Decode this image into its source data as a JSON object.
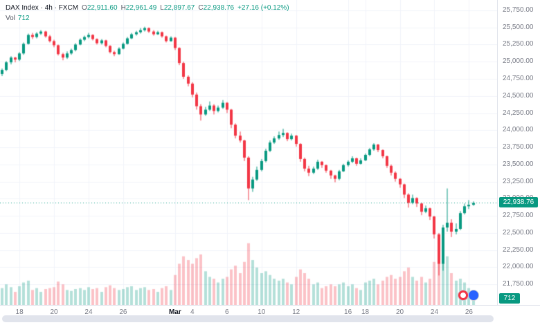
{
  "header": {
    "title": "DAX Index · 4h · FXCM",
    "ohlc": {
      "o_label": "O",
      "o_value": "22,911.60",
      "h_label": "H",
      "h_value": "22,961.49",
      "l_label": "L",
      "l_value": "22,897.67",
      "c_label": "C",
      "c_value": "22,938.76",
      "change": "+27.16 (+0.12%)"
    },
    "volume_row": {
      "label": "Vol",
      "value": "712"
    }
  },
  "colors": {
    "up": "#089981",
    "down": "#f23645",
    "vol_up": "rgba(8,153,129,0.30)",
    "vol_down": "rgba(242,54,69,0.30)",
    "grid": "#f0f3fa",
    "axis_text": "#787b86",
    "badge_bg": "#089981",
    "axis_border": "#e0e3eb"
  },
  "price_axis": {
    "tick_min": 21750,
    "tick_max": 25750,
    "tick_step": 250,
    "last_price_label": "22,938.76",
    "last_volume_label": "712"
  },
  "stickers": [
    {
      "name": "red-circle-sticker",
      "ring": "#f23645",
      "fill": "#ffffff"
    },
    {
      "name": "blue-circle-sticker",
      "ring": "#2962ff",
      "fill": "#2962ff"
    }
  ],
  "chart_data": {
    "type": "candlestick",
    "title": "DAX Index 4h FXCM",
    "ylim": [
      21450,
      25900
    ],
    "right_offset": 5,
    "volume_pane_height": 92,
    "candle_format": [
      "open",
      "high",
      "low",
      "close",
      "volume"
    ],
    "time_labels": [
      {
        "index": 4,
        "text": "18"
      },
      {
        "index": 12,
        "text": "20"
      },
      {
        "index": 20,
        "text": "24"
      },
      {
        "index": 28,
        "text": "26"
      },
      {
        "index": 40,
        "text": "Mar",
        "major": true
      },
      {
        "index": 44,
        "text": "4"
      },
      {
        "index": 52,
        "text": "6"
      },
      {
        "index": 60,
        "text": "10"
      },
      {
        "index": 68,
        "text": "12"
      },
      {
        "index": 80,
        "text": "16"
      },
      {
        "index": 84,
        "text": "18"
      },
      {
        "index": 92,
        "text": "20"
      },
      {
        "index": 100,
        "text": "24"
      },
      {
        "index": 108,
        "text": "26"
      }
    ],
    "candles": [
      [
        24820,
        24900,
        24790,
        24880,
        900
      ],
      [
        24880,
        25010,
        24860,
        24990,
        1100
      ],
      [
        24990,
        25080,
        24960,
        25060,
        950
      ],
      [
        25060,
        25070,
        24990,
        25030,
        700
      ],
      [
        25030,
        25140,
        25010,
        25120,
        1000
      ],
      [
        25120,
        25280,
        25100,
        25260,
        1200
      ],
      [
        25260,
        25410,
        25250,
        25390,
        1300
      ],
      [
        25390,
        25420,
        25330,
        25360,
        800
      ],
      [
        25360,
        25430,
        25340,
        25410,
        900
      ],
      [
        25410,
        25460,
        25390,
        25440,
        700
      ],
      [
        25440,
        25450,
        25350,
        25370,
        850
      ],
      [
        25370,
        25390,
        25280,
        25300,
        900
      ],
      [
        25300,
        25320,
        25210,
        25240,
        950
      ],
      [
        25240,
        25250,
        25090,
        25110,
        1250
      ],
      [
        25110,
        25130,
        25020,
        25060,
        1100
      ],
      [
        25060,
        25150,
        25040,
        25120,
        800
      ],
      [
        25120,
        25190,
        25100,
        25170,
        750
      ],
      [
        25170,
        25270,
        25150,
        25250,
        850
      ],
      [
        25250,
        25340,
        25240,
        25320,
        900
      ],
      [
        25320,
        25380,
        25300,
        25360,
        800
      ],
      [
        25360,
        25420,
        25340,
        25390,
        950
      ],
      [
        25390,
        25400,
        25310,
        25330,
        850
      ],
      [
        25330,
        25340,
        25250,
        25270,
        900
      ],
      [
        25270,
        25330,
        25250,
        25310,
        700
      ],
      [
        25310,
        25320,
        25210,
        25230,
        950
      ],
      [
        25230,
        25240,
        25120,
        25140,
        1050
      ],
      [
        25140,
        25160,
        25080,
        25110,
        900
      ],
      [
        25110,
        25210,
        25100,
        25190,
        800
      ],
      [
        25190,
        25280,
        25180,
        25260,
        850
      ],
      [
        25260,
        25360,
        25250,
        25340,
        950
      ],
      [
        25340,
        25420,
        25330,
        25400,
        1000
      ],
      [
        25400,
        25450,
        25380,
        25430,
        800
      ],
      [
        25430,
        25490,
        25410,
        25460,
        900
      ],
      [
        25460,
        25510,
        25440,
        25490,
        950
      ],
      [
        25490,
        25500,
        25420,
        25440,
        800
      ],
      [
        25440,
        25460,
        25380,
        25400,
        850
      ],
      [
        25400,
        25450,
        25390,
        25430,
        700
      ],
      [
        25430,
        25440,
        25350,
        25370,
        900
      ],
      [
        25370,
        25380,
        25280,
        25300,
        1000
      ],
      [
        25300,
        25370,
        25290,
        25350,
        800
      ],
      [
        25350,
        25360,
        25170,
        25200,
        1600
      ],
      [
        25200,
        25210,
        24950,
        24980,
        2200
      ],
      [
        24980,
        25000,
        24750,
        24780,
        2600
      ],
      [
        24780,
        24800,
        24640,
        24680,
        2400
      ],
      [
        24680,
        24700,
        24480,
        24520,
        2200
      ],
      [
        24520,
        24550,
        24300,
        24350,
        2500
      ],
      [
        24350,
        24380,
        24140,
        24230,
        2700
      ],
      [
        24230,
        24340,
        24210,
        24300,
        1800
      ],
      [
        24300,
        24420,
        24280,
        24360,
        1500
      ],
      [
        24360,
        24380,
        24230,
        24280,
        1400
      ],
      [
        24280,
        24360,
        24260,
        24330,
        1200
      ],
      [
        24330,
        24440,
        24310,
        24400,
        1400
      ],
      [
        24400,
        24410,
        24250,
        24300,
        1500
      ],
      [
        24300,
        24310,
        24030,
        24080,
        1900
      ],
      [
        24080,
        24100,
        23880,
        23920,
        2100
      ],
      [
        23920,
        23980,
        23820,
        23850,
        1700
      ],
      [
        23850,
        23860,
        23550,
        23600,
        2300
      ],
      [
        23600,
        23620,
        22980,
        23150,
        3300
      ],
      [
        23150,
        23320,
        23100,
        23280,
        2400
      ],
      [
        23280,
        23470,
        23260,
        23420,
        2000
      ],
      [
        23420,
        23580,
        23400,
        23550,
        1700
      ],
      [
        23550,
        23730,
        23530,
        23700,
        1800
      ],
      [
        23700,
        23850,
        23680,
        23820,
        1600
      ],
      [
        23820,
        23910,
        23800,
        23880,
        1400
      ],
      [
        23880,
        23980,
        23860,
        23930,
        1300
      ],
      [
        23930,
        24020,
        23900,
        23960,
        1400
      ],
      [
        23960,
        23970,
        23840,
        23870,
        1200
      ],
      [
        23870,
        23950,
        23850,
        23920,
        1100
      ],
      [
        23920,
        23930,
        23760,
        23800,
        1500
      ],
      [
        23800,
        23810,
        23540,
        23580,
        1900
      ],
      [
        23580,
        23600,
        23400,
        23440,
        1700
      ],
      [
        23440,
        23480,
        23330,
        23380,
        1400
      ],
      [
        23380,
        23470,
        23360,
        23440,
        1100
      ],
      [
        23440,
        23570,
        23420,
        23540,
        1200
      ],
      [
        23540,
        23550,
        23450,
        23490,
        900
      ],
      [
        23490,
        23500,
        23380,
        23410,
        1000
      ],
      [
        23410,
        23420,
        23290,
        23340,
        1100
      ],
      [
        23340,
        23350,
        23240,
        23290,
        1000
      ],
      [
        23290,
        23420,
        23270,
        23400,
        1100
      ],
      [
        23400,
        23510,
        23390,
        23490,
        1200
      ],
      [
        23490,
        23560,
        23470,
        23540,
        1000
      ],
      [
        23540,
        23620,
        23520,
        23590,
        1100
      ],
      [
        23590,
        23600,
        23480,
        23510,
        900
      ],
      [
        23510,
        23590,
        23500,
        23560,
        800
      ],
      [
        23560,
        23660,
        23550,
        23640,
        1200
      ],
      [
        23640,
        23740,
        23620,
        23720,
        1300
      ],
      [
        23720,
        23810,
        23700,
        23790,
        1400
      ],
      [
        23790,
        23800,
        23680,
        23710,
        1100
      ],
      [
        23710,
        23720,
        23590,
        23620,
        1300
      ],
      [
        23620,
        23630,
        23450,
        23480,
        1500
      ],
      [
        23480,
        23500,
        23340,
        23380,
        1600
      ],
      [
        23380,
        23400,
        23250,
        23290,
        1400
      ],
      [
        23290,
        23300,
        23160,
        23210,
        1500
      ],
      [
        23210,
        23220,
        23010,
        23060,
        1800
      ],
      [
        23060,
        23080,
        22870,
        22940,
        2000
      ],
      [
        22940,
        23060,
        22920,
        23010,
        1500
      ],
      [
        23010,
        23020,
        22880,
        22930,
        1300
      ],
      [
        22930,
        22940,
        22760,
        22810,
        1500
      ],
      [
        22810,
        22900,
        22790,
        22860,
        1200
      ],
      [
        22860,
        22870,
        22690,
        22740,
        1400
      ],
      [
        22740,
        22750,
        22420,
        22480,
        2300
      ],
      [
        22480,
        22500,
        21880,
        22050,
        3400
      ],
      [
        22050,
        22620,
        21950,
        22580,
        3100
      ],
      [
        22580,
        23150,
        22520,
        22650,
        2600
      ],
      [
        22650,
        22700,
        22440,
        22520,
        1700
      ],
      [
        22520,
        22640,
        22480,
        22560,
        1300
      ],
      [
        22560,
        22820,
        22540,
        22790,
        1400
      ],
      [
        22790,
        22930,
        22770,
        22890,
        1200
      ],
      [
        22890,
        22980,
        22850,
        22911.6,
        900
      ],
      [
        22911.6,
        22961.49,
        22897.67,
        22938.76,
        712
      ]
    ]
  }
}
